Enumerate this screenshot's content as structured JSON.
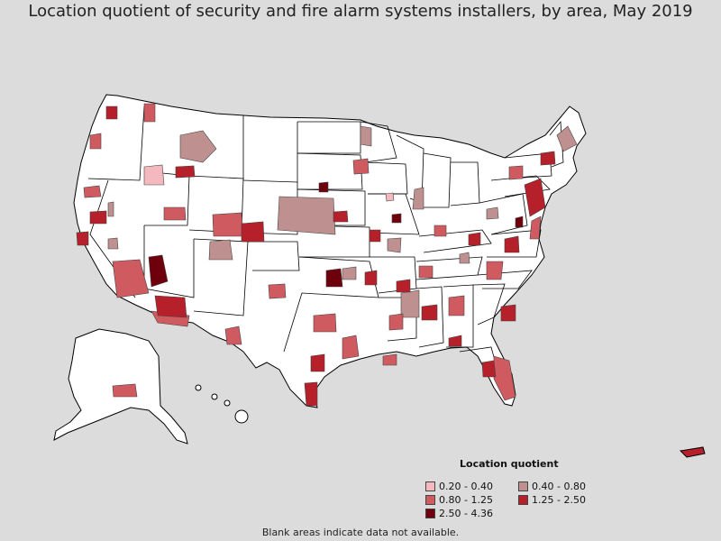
{
  "title": "Location quotient of security and fire alarm systems installers, by area, May 2019",
  "legend": {
    "title": "Location quotient",
    "items": [
      {
        "label": "0.20 - 0.40",
        "color": "#f4b9bf"
      },
      {
        "label": "0.40 - 0.80",
        "color": "#bf9090"
      },
      {
        "label": "0.80 - 1.25",
        "color": "#cf5b61"
      },
      {
        "label": "1.25 - 2.50",
        "color": "#b5202b"
      },
      {
        "label": "2.50 - 4.36",
        "color": "#6d000c"
      }
    ]
  },
  "footnote": "Blank areas indicate data not available.",
  "colors": {
    "background": "#dcdcdc",
    "land": "#ffffff",
    "border": "#000000"
  }
}
